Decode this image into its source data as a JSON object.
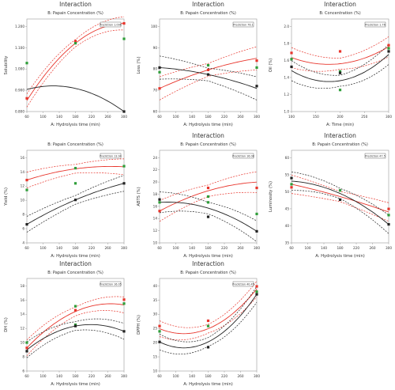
{
  "colors": {
    "red": "#e8352c",
    "black": "#222222",
    "green": "#2f9e3a",
    "grid": "#d8d8d8"
  },
  "chart_data": [
    {
      "type": "line",
      "title": "Interaction",
      "subtitle": "B: Papain Concentration (%)",
      "xlabel": "A: Hydrolysis time (min)",
      "ylabel": "Solubility",
      "legend_label": "Prediction 1.096",
      "xlim": [
        60,
        300
      ],
      "ylim": [
        0.8,
        1.22
      ],
      "xticks": [
        "60",
        "100",
        "140",
        "180",
        "220",
        "260",
        "300"
      ],
      "yticks": [
        "0.800",
        "0.900",
        "1.000",
        "1.100",
        "1.200"
      ],
      "series": [
        {
          "color": "red",
          "x": [
            60,
            180,
            300
          ],
          "y": [
            0.85,
            1.11,
            1.2
          ],
          "band": 0.03
        },
        {
          "color": "black",
          "x": [
            60,
            180,
            300
          ],
          "y": [
            0.9,
            0.905,
            0.8
          ],
          "band": 0
        }
      ],
      "points": [
        {
          "x": 60,
          "y": 1.02,
          "color": "green"
        },
        {
          "x": 60,
          "y": 0.86,
          "color": "red"
        },
        {
          "x": 180,
          "y": 1.12,
          "color": "red"
        },
        {
          "x": 180,
          "y": 1.11,
          "color": "green"
        },
        {
          "x": 300,
          "y": 1.2,
          "color": "red"
        },
        {
          "x": 300,
          "y": 1.13,
          "color": "green"
        },
        {
          "x": 300,
          "y": 0.8,
          "color": "black"
        }
      ]
    },
    {
      "type": "line",
      "title": "Interaction",
      "subtitle": "B: Papain Concentration (%)",
      "xlabel": "A: Hydrolysis time (min)",
      "ylabel": "Loss (%)",
      "legend_label": "Prediction 76.1",
      "xlim": [
        60,
        300
      ],
      "ylim": [
        60,
        100
      ],
      "xticks": [
        "60",
        "100",
        "140",
        "180",
        "220",
        "260",
        "300"
      ],
      "yticks": [
        "60",
        "70",
        "80",
        "90",
        "100"
      ],
      "series": [
        {
          "color": "red",
          "x": [
            60,
            180,
            300
          ],
          "y": [
            70,
            78,
            83
          ],
          "band": 5
        },
        {
          "color": "black",
          "x": [
            60,
            180,
            300
          ],
          "y": [
            79,
            76,
            70
          ],
          "band": 5
        }
      ],
      "points": [
        {
          "x": 60,
          "y": 79,
          "color": "black"
        },
        {
          "x": 60,
          "y": 77,
          "color": "green"
        },
        {
          "x": 60,
          "y": 70,
          "color": "red"
        },
        {
          "x": 180,
          "y": 80,
          "color": "green"
        },
        {
          "x": 180,
          "y": 78,
          "color": "red"
        },
        {
          "x": 180,
          "y": 76,
          "color": "black"
        },
        {
          "x": 300,
          "y": 82,
          "color": "red"
        },
        {
          "x": 300,
          "y": 79,
          "color": "green"
        },
        {
          "x": 300,
          "y": 71,
          "color": "black"
        }
      ]
    },
    {
      "type": "line",
      "title": "Interaction",
      "subtitle": "B: Concentration (%)",
      "xlabel": "A: Time (min)",
      "ylabel": "Oil (%)",
      "legend_label": "Prediction 1.76",
      "xlim": [
        60,
        300
      ],
      "ylim": [
        1.0,
        2.2
      ],
      "xticks": [
        "100",
        "150",
        "200",
        "250",
        "300"
      ],
      "yticks": [
        "1.0",
        "1.2",
        "1.4",
        "1.6",
        "1.8",
        "2.0"
      ],
      "series": [
        {
          "color": "red",
          "x": [
            60,
            180,
            300
          ],
          "y": [
            1.7,
            1.62,
            1.84
          ],
          "band": 0.13
        },
        {
          "color": "black",
          "x": [
            60,
            180,
            300
          ],
          "y": [
            1.53,
            1.4,
            1.74
          ],
          "band": 0.13
        }
      ],
      "points": [
        {
          "x": 60,
          "y": 1.76,
          "color": "red"
        },
        {
          "x": 60,
          "y": 1.68,
          "color": "green"
        },
        {
          "x": 60,
          "y": 1.58,
          "color": "black"
        },
        {
          "x": 180,
          "y": 1.78,
          "color": "red"
        },
        {
          "x": 180,
          "y": 1.52,
          "color": "green"
        },
        {
          "x": 180,
          "y": 1.5,
          "color": "black"
        },
        {
          "x": 180,
          "y": 1.28,
          "color": "green"
        },
        {
          "x": 300,
          "y": 1.82,
          "color": "green"
        },
        {
          "x": 300,
          "y": 1.78,
          "color": "black"
        },
        {
          "x": 300,
          "y": 1.86,
          "color": "red"
        }
      ]
    },
    {
      "type": "line",
      "title": "",
      "subtitle": "B: Papain Concentration (%)",
      "xlabel": "A: Hydrolysis time (min)",
      "ylabel": "Yield (%)",
      "legend_label": "Prediction 13.94",
      "xlim": [
        60,
        300
      ],
      "ylim": [
        4,
        18
      ],
      "xticks": [
        "60",
        "100",
        "140",
        "180",
        "220",
        "260",
        "300"
      ],
      "yticks": [
        "4",
        "6",
        "8",
        "10",
        "12",
        "14",
        "16"
      ],
      "series": [
        {
          "color": "red",
          "x": [
            60,
            180,
            300
          ],
          "y": [
            13.5,
            15.2,
            15.5
          ],
          "band": 1.2
        },
        {
          "color": "black",
          "x": [
            60,
            180,
            300
          ],
          "y": [
            6.8,
            10.5,
            13
          ],
          "band": 1.2
        }
      ],
      "points": [
        {
          "x": 60,
          "y": 13.5,
          "color": "red"
        },
        {
          "x": 60,
          "y": 12,
          "color": "green"
        },
        {
          "x": 60,
          "y": 6.8,
          "color": "black"
        },
        {
          "x": 180,
          "y": 15.3,
          "color": "green"
        },
        {
          "x": 180,
          "y": 13,
          "color": "green"
        },
        {
          "x": 180,
          "y": 10.5,
          "color": "black"
        },
        {
          "x": 300,
          "y": 15.6,
          "color": "green"
        },
        {
          "x": 300,
          "y": 13,
          "color": "black"
        }
      ]
    },
    {
      "type": "line",
      "title": "Interaction",
      "subtitle": "B: Papain Concentration (%)",
      "xlabel": "A: Hydrolysis time (min)",
      "ylabel": "ABTS (%)",
      "legend_label": "Prediction 16.08",
      "xlim": [
        60,
        300
      ],
      "ylim": [
        10,
        26
      ],
      "xticks": [
        "60",
        "100",
        "140",
        "180",
        "220",
        "260",
        "300"
      ],
      "yticks": [
        "10",
        "12",
        "14",
        "16",
        "18",
        "20",
        "22",
        "24"
      ],
      "series": [
        {
          "color": "red",
          "x": [
            60,
            180,
            300
          ],
          "y": [
            15.5,
            19,
            20.5
          ],
          "band": 1.8
        },
        {
          "color": "black",
          "x": [
            60,
            180,
            300
          ],
          "y": [
            17,
            16,
            12
          ],
          "band": 1.8
        }
      ],
      "points": [
        {
          "x": 60,
          "y": 17.5,
          "color": "black"
        },
        {
          "x": 60,
          "y": 17,
          "color": "green"
        },
        {
          "x": 60,
          "y": 15.5,
          "color": "red"
        },
        {
          "x": 180,
          "y": 19.5,
          "color": "red"
        },
        {
          "x": 180,
          "y": 18,
          "color": "green"
        },
        {
          "x": 180,
          "y": 17,
          "color": "green"
        },
        {
          "x": 180,
          "y": 14.5,
          "color": "black"
        },
        {
          "x": 300,
          "y": 19.5,
          "color": "red"
        },
        {
          "x": 300,
          "y": 15,
          "color": "green"
        },
        {
          "x": 300,
          "y": 12,
          "color": "black"
        }
      ]
    },
    {
      "type": "line",
      "title": "Interaction",
      "subtitle": "B: Papain Concentration (%)",
      "xlabel": "A: Hydrolysis time (min)",
      "ylabel": "Luminosity (%)",
      "legend_label": "Prediction 47.5",
      "xlim": [
        60,
        300
      ],
      "ylim": [
        35,
        65
      ],
      "xticks": [
        "60",
        "100",
        "140",
        "180",
        "220",
        "260",
        "300"
      ],
      "yticks": [
        "35",
        "40",
        "45",
        "50",
        "55",
        "60"
      ],
      "series": [
        {
          "color": "red",
          "x": [
            60,
            180,
            300
          ],
          "y": [
            54,
            50,
            45
          ],
          "band": 3
        },
        {
          "color": "black",
          "x": [
            60,
            180,
            300
          ],
          "y": [
            55,
            51,
            41
          ],
          "band": 3
        }
      ],
      "points": [
        {
          "x": 60,
          "y": 56,
          "color": "black"
        },
        {
          "x": 60,
          "y": 54,
          "color": "green"
        },
        {
          "x": 60,
          "y": 53,
          "color": "red"
        },
        {
          "x": 180,
          "y": 52,
          "color": "green"
        },
        {
          "x": 180,
          "y": 49,
          "color": "black"
        },
        {
          "x": 300,
          "y": 46,
          "color": "red"
        },
        {
          "x": 300,
          "y": 44,
          "color": "green"
        },
        {
          "x": 300,
          "y": 41,
          "color": "black"
        }
      ]
    },
    {
      "type": "line",
      "title": "Interaction",
      "subtitle": "B: Papain Concentration (%)",
      "xlabel": "A: Hydrolysis time (min)",
      "ylabel": "DH (%)",
      "legend_label": "Prediction 16.05",
      "xlim": [
        60,
        300
      ],
      "ylim": [
        6,
        20
      ],
      "xticks": [
        "60",
        "100",
        "140",
        "180",
        "220",
        "260",
        "300"
      ],
      "yticks": [
        "6",
        "8",
        "10",
        "12",
        "14",
        "16",
        "18"
      ],
      "series": [
        {
          "color": "red",
          "x": [
            60,
            180,
            300
          ],
          "y": [
            9.5,
            15,
            16
          ],
          "band": 1.2
        },
        {
          "color": "black",
          "x": [
            60,
            180,
            300
          ],
          "y": [
            9.2,
            12.8,
            12
          ],
          "band": 1.2
        }
      ],
      "points": [
        {
          "x": 60,
          "y": 10.3,
          "color": "green"
        },
        {
          "x": 60,
          "y": 9.5,
          "color": "red"
        },
        {
          "x": 60,
          "y": 9,
          "color": "black"
        },
        {
          "x": 180,
          "y": 15.8,
          "color": "green"
        },
        {
          "x": 180,
          "y": 15.2,
          "color": "red"
        },
        {
          "x": 180,
          "y": 13,
          "color": "green"
        },
        {
          "x": 180,
          "y": 12.8,
          "color": "black"
        },
        {
          "x": 300,
          "y": 16.8,
          "color": "red"
        },
        {
          "x": 300,
          "y": 16.2,
          "color": "green"
        },
        {
          "x": 300,
          "y": 12,
          "color": "black"
        }
      ]
    },
    {
      "type": "line",
      "title": "Interaction",
      "subtitle": "B: Papain Concentration (%)",
      "xlabel": "A: Hydrolysis time (min)",
      "ylabel": "DPPH (%)",
      "legend_label": "Prediction 40.45",
      "xlim": [
        60,
        300
      ],
      "ylim": [
        10,
        45
      ],
      "xticks": [
        "60",
        "100",
        "140",
        "180",
        "220",
        "260",
        "300"
      ],
      "yticks": [
        "10",
        "15",
        "20",
        "25",
        "30",
        "35",
        "40"
      ],
      "series": [
        {
          "color": "red",
          "x": [
            60,
            180,
            300
          ],
          "y": [
            26,
            26,
            41
          ],
          "band": 3
        },
        {
          "color": "black",
          "x": [
            60,
            180,
            300
          ],
          "y": [
            21,
            21,
            39
          ],
          "band": 3
        }
      ],
      "points": [
        {
          "x": 60,
          "y": 27,
          "color": "red"
        },
        {
          "x": 60,
          "y": 25,
          "color": "green"
        },
        {
          "x": 60,
          "y": 21,
          "color": "black"
        },
        {
          "x": 180,
          "y": 29,
          "color": "red"
        },
        {
          "x": 180,
          "y": 27,
          "color": "green"
        },
        {
          "x": 180,
          "y": 19,
          "color": "black"
        },
        {
          "x": 300,
          "y": 42,
          "color": "red"
        },
        {
          "x": 300,
          "y": 40,
          "color": "green"
        },
        {
          "x": 300,
          "y": 39,
          "color": "black"
        }
      ]
    }
  ]
}
